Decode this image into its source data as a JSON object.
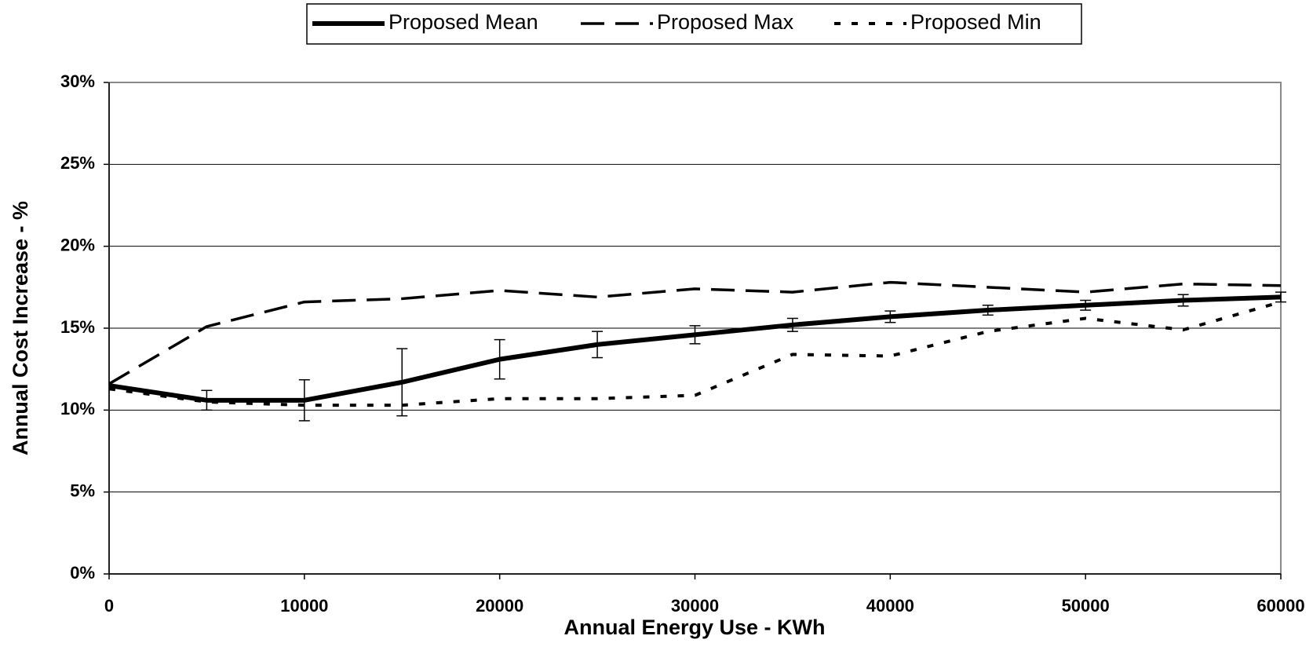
{
  "chart_data": {
    "type": "line",
    "x_label": "Annual Energy Use - KWh",
    "y_label": "Annual Cost Increase - %",
    "x": [
      0,
      5000,
      10000,
      15000,
      20000,
      25000,
      30000,
      35000,
      40000,
      45000,
      50000,
      55000,
      60000
    ],
    "series": [
      {
        "name": "Proposed Mean",
        "color": "#000000",
        "style": "solid",
        "values": [
          11.5,
          10.6,
          10.6,
          11.7,
          13.1,
          14.0,
          14.6,
          15.2,
          15.7,
          16.1,
          16.4,
          16.7,
          16.9
        ],
        "errors": [
          null,
          0.6,
          1.25,
          2.05,
          1.2,
          0.8,
          0.55,
          0.4,
          0.35,
          0.3,
          0.3,
          0.35,
          0.3
        ]
      },
      {
        "name": "Proposed Max",
        "color": "#000000",
        "style": "dashed",
        "values": [
          11.6,
          15.1,
          16.6,
          16.8,
          17.3,
          16.9,
          17.4,
          17.2,
          17.8,
          17.5,
          17.2,
          17.7,
          17.6
        ]
      },
      {
        "name": "Proposed Min",
        "color": "#000000",
        "style": "dotted",
        "values": [
          11.3,
          10.5,
          10.3,
          10.3,
          10.7,
          10.7,
          10.9,
          13.4,
          13.3,
          14.8,
          15.6,
          14.9,
          16.6
        ]
      }
    ],
    "xlim": [
      0,
      60000
    ],
    "xticks": [
      0,
      10000,
      20000,
      30000,
      40000,
      50000,
      60000
    ],
    "ylim": [
      0,
      30
    ],
    "yticks": [
      {
        "value": 0,
        "label": "0%"
      },
      {
        "value": 5,
        "label": "5%"
      },
      {
        "value": 10,
        "label": "10%"
      },
      {
        "value": 15,
        "label": "15%"
      },
      {
        "value": 20,
        "label": "20%"
      },
      {
        "value": 25,
        "label": "25%"
      },
      {
        "value": 30,
        "label": "30%"
      }
    ],
    "grid": true,
    "legend": "top"
  }
}
